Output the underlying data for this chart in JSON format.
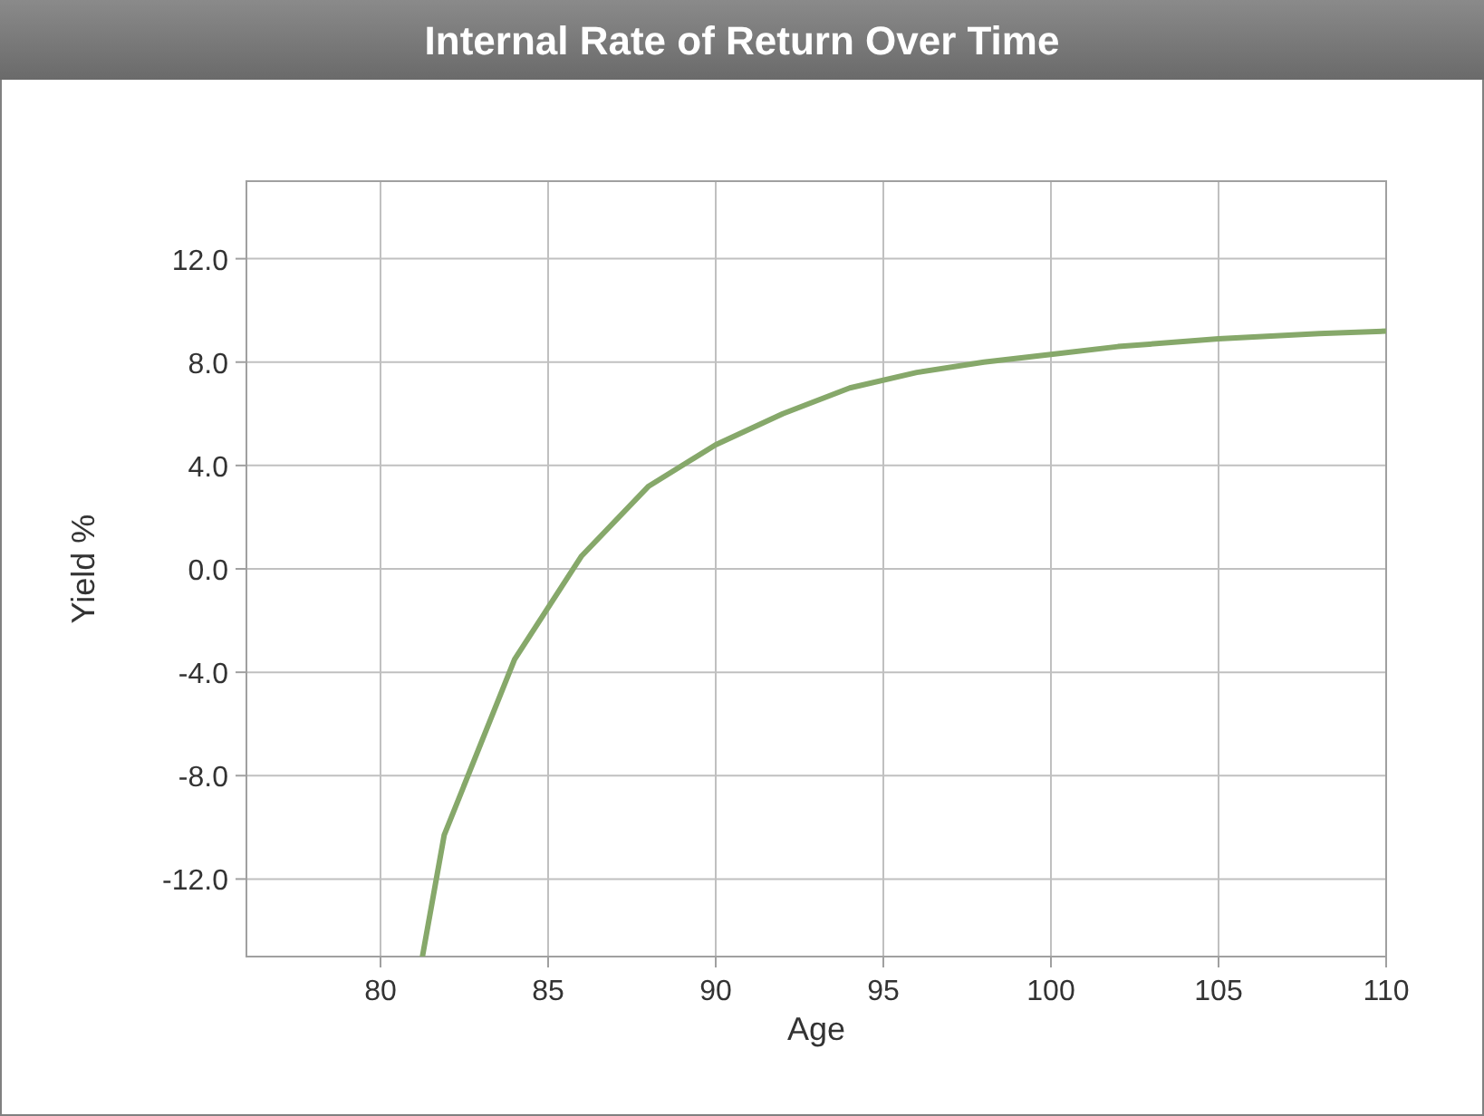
{
  "chart_data": {
    "type": "line",
    "title": "Internal Rate of Return Over Time",
    "xlabel": "Age",
    "ylabel": "Yield %",
    "x": [
      81.25,
      81.9,
      84,
      86,
      88,
      90,
      92,
      94,
      96,
      98,
      100,
      102,
      105,
      108,
      110
    ],
    "series": [
      {
        "color": "#86a86a",
        "values": [
          -15,
          -10.3,
          -3.5,
          0.5,
          3.2,
          4.8,
          6.0,
          7.0,
          7.6,
          8.0,
          8.3,
          8.6,
          8.9,
          9.1,
          9.2
        ]
      }
    ],
    "xlim": [
      76,
      110
    ],
    "xticks": [
      80,
      85,
      90,
      95,
      100,
      105,
      110
    ],
    "ylim": [
      -15,
      15
    ],
    "yticks": [
      {
        "value": -12,
        "label": "-12.0"
      },
      {
        "value": -8,
        "label": "-8.0"
      },
      {
        "value": -4,
        "label": "-4.0"
      },
      {
        "value": 0,
        "label": "0.0"
      },
      {
        "value": 4,
        "label": "4.0"
      },
      {
        "value": 8,
        "label": "8.0"
      },
      {
        "value": 12,
        "label": "12.0"
      }
    ],
    "grid": true,
    "marker": "none",
    "line_style": "solid"
  }
}
